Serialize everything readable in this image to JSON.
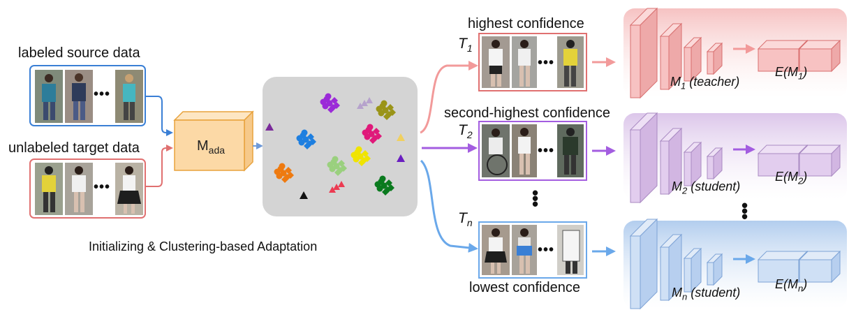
{
  "source_label": "labeled source data",
  "target_label": "unlabeled target data",
  "model_main": "M",
  "model_sub": "ada",
  "clustering_caption": "Initializing & Clustering-based Adaptation",
  "ellipsis": "•••",
  "vertical_ellipsis": "⋮",
  "rows": [
    {
      "confidence": "highest confidence",
      "t_main": "T",
      "t_sub": "1",
      "net_main": "M",
      "net_sub": "1",
      "net_role": "(teacher)",
      "emb_main": "E(M",
      "emb_sub": "1",
      "emb_end": ")",
      "color": "#f08c8c"
    },
    {
      "confidence": "second-highest confidence",
      "t_main": "T",
      "t_sub": "2",
      "net_main": "M",
      "net_sub": "2",
      "net_role": "(student)",
      "emb_main": "E(M",
      "emb_sub": "2",
      "emb_end": ")",
      "color": "#a35de0"
    },
    {
      "confidence": "lowest confidence",
      "t_main": "T",
      "t_sub": "n",
      "net_main": "M",
      "net_sub": "n",
      "net_role": "(student)",
      "emb_main": "E(M",
      "emb_sub": "n",
      "emb_end": ")",
      "color": "#6aa8ea"
    }
  ],
  "colors": {
    "source_border": "#3a7fd5",
    "target_border": "#e07070",
    "mada_fill": "#fcd9a6",
    "mada_border": "#e8a23c",
    "cluster_bg": "#d4d4d4"
  }
}
